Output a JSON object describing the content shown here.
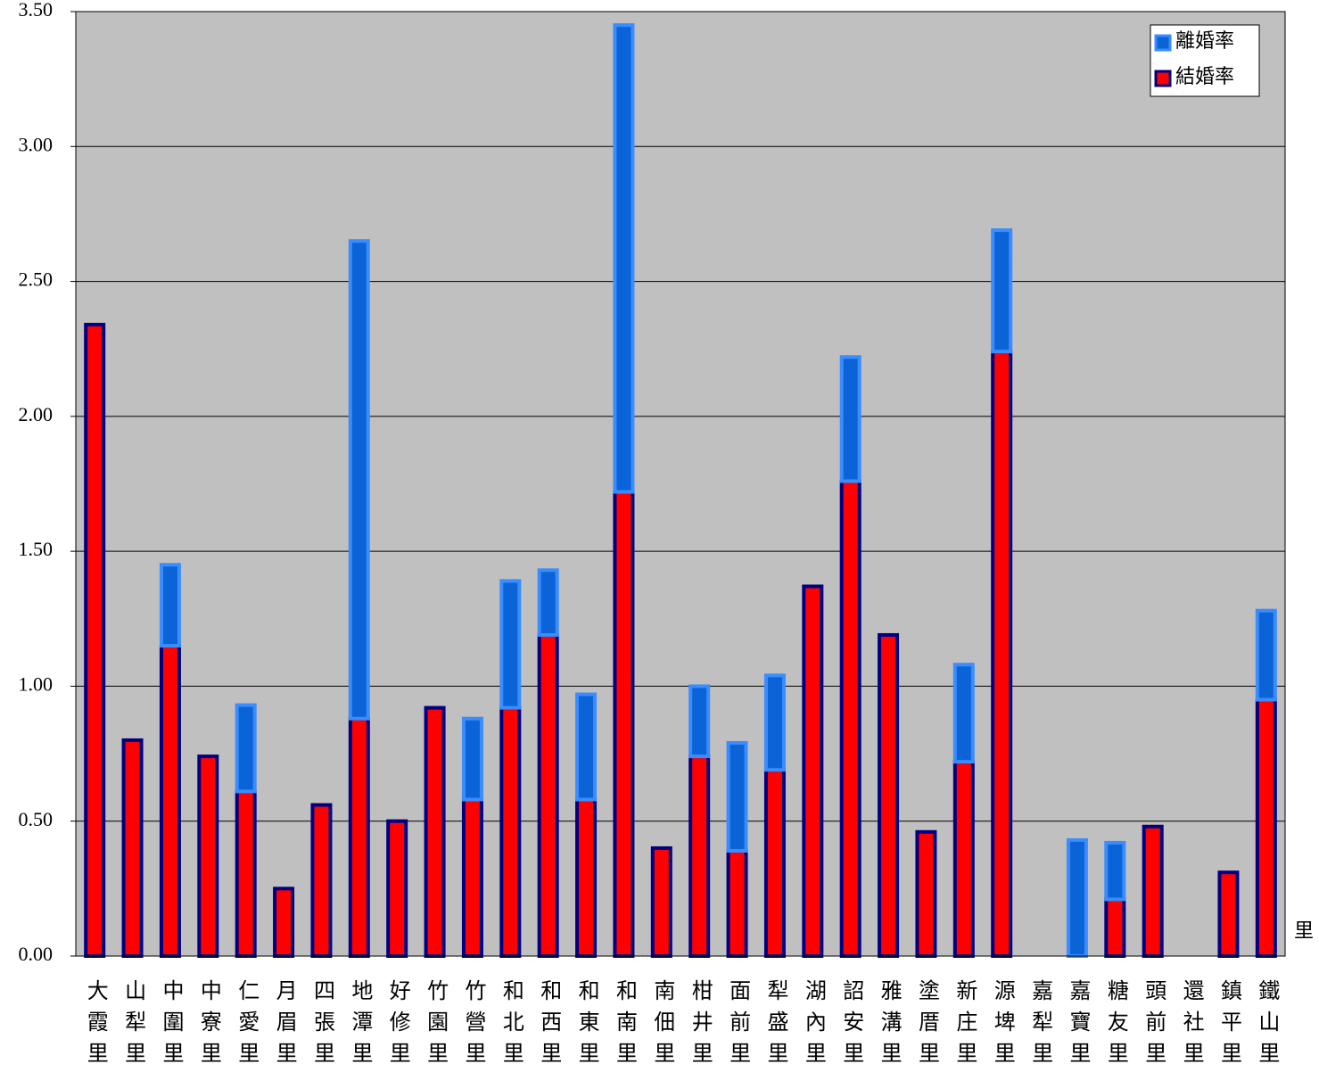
{
  "chart_data": {
    "type": "stacked_bar",
    "x_label": "里",
    "categories": [
      "大霞里",
      "山犁里",
      "中圍里",
      "中寮里",
      "仁愛里",
      "月眉里",
      "四張里",
      "地潭里",
      "好修里",
      "竹園里",
      "竹營里",
      "和北里",
      "和西里",
      "和東里",
      "和南里",
      "南佃里",
      "柑井里",
      "面前里",
      "犁盛里",
      "湖內里",
      "詔安里",
      "雅溝里",
      "塗厝里",
      "新庄里",
      "源埤里",
      "嘉犁里",
      "嘉寶里",
      "糖友里",
      "頭前里",
      "還社里",
      "鎮平里",
      "鐵山里"
    ],
    "series": [
      {
        "name": "結婚率",
        "color": "#ff0000",
        "border": "#000080",
        "values": [
          2.34,
          0.8,
          1.15,
          0.74,
          0.61,
          0.25,
          0.56,
          0.88,
          0.5,
          0.92,
          0.58,
          0.92,
          1.19,
          0.58,
          1.72,
          0.4,
          0.74,
          0.39,
          0.69,
          1.37,
          1.76,
          1.19,
          0.46,
          0.72,
          2.24,
          0,
          0,
          0.21,
          0.48,
          0,
          0.31,
          0.95
        ]
      },
      {
        "name": "離婚率",
        "color": "#0a64d8",
        "border": "#3a8cff",
        "values": [
          0,
          0,
          0.3,
          0,
          0.32,
          0,
          0,
          1.77,
          0,
          0,
          0.3,
          0.47,
          0.24,
          0.39,
          1.73,
          0,
          0.26,
          0.4,
          0.35,
          0,
          0.46,
          0,
          0,
          0.36,
          0.45,
          0,
          0.43,
          0.21,
          0,
          0,
          0,
          0.33
        ]
      }
    ],
    "ylim": [
      0,
      3.5
    ],
    "yticks": [
      {
        "value": 0,
        "label": "0.00"
      },
      {
        "value": 0.5,
        "label": "0.50"
      },
      {
        "value": 1,
        "label": "1.00"
      },
      {
        "value": 1.5,
        "label": "1.50"
      },
      {
        "value": 2,
        "label": "2.00"
      },
      {
        "value": 2.5,
        "label": "2.50"
      },
      {
        "value": 3,
        "label": "3.00"
      },
      {
        "value": 3.5,
        "label": "3.50"
      }
    ],
    "grid": true,
    "background": "#c0c0c0",
    "legend": "top-right"
  }
}
